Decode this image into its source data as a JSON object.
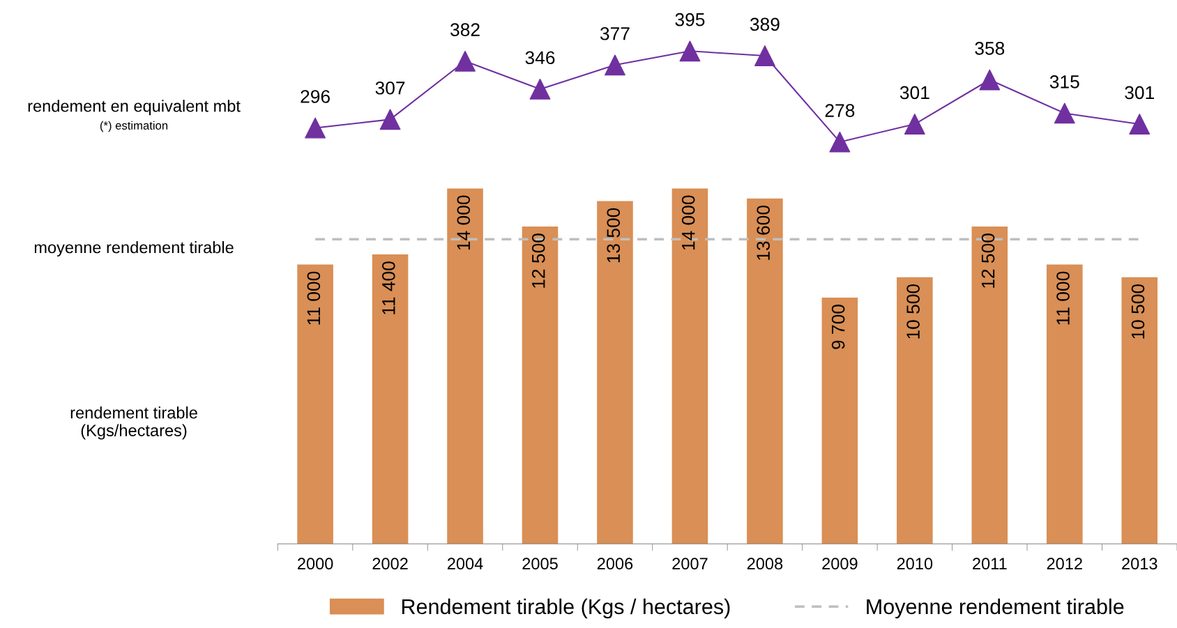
{
  "chart_data": [
    {
      "type": "line",
      "ylabel": "rendement en equivalent mbt",
      "annotations": [
        "(*) estimation"
      ],
      "categories": [
        "2000",
        "2002",
        "2004",
        "2005",
        "2006",
        "2007",
        "2008",
        "2009",
        "2010",
        "2011",
        "2012",
        "2013"
      ],
      "series": [
        {
          "color": "#7030a0",
          "values": [
            296,
            307,
            382,
            346,
            377,
            395,
            389,
            278,
            301,
            358,
            315,
            301
          ]
        }
      ],
      "tick_labels": false,
      "data_labels": true,
      "marker": "triangle",
      "line_style": "solid",
      "grid": false,
      "legend": false
    },
    {
      "type": "bar",
      "ylabel": "rendement tirable\n(Kgs/hectares)",
      "annotations": [
        "moyenne rendement tirable"
      ],
      "categories": [
        "2000",
        "2002",
        "2004",
        "2005",
        "2006",
        "2007",
        "2008",
        "2009",
        "2010",
        "2011",
        "2012",
        "2013"
      ],
      "series": [
        {
          "name": "Rendement tirable (Kgs / hectares)",
          "color": "#d98f55",
          "values": [
            11000,
            11400,
            14000,
            12500,
            13500,
            14000,
            13600,
            9700,
            10500,
            12500,
            11000,
            10500
          ],
          "value_labels": [
            "11 000",
            "11 400",
            "14 000",
            "12 500",
            "13 500",
            "14 000",
            "13 600",
            "9 700",
            "10 500",
            "12 500",
            "11 000",
            "10 500"
          ]
        },
        {
          "name": "Moyenne rendement tirable",
          "type": "line",
          "line_style": "dashed",
          "color": "#bfbfbf",
          "values": [
            12000,
            12000,
            12000,
            12000,
            12000,
            12000,
            12000,
            12000,
            12000,
            12000,
            12000,
            12000
          ]
        }
      ],
      "ylim": [
        0,
        14000
      ],
      "tick_labels": "x",
      "grid": false,
      "legend": "bottom"
    }
  ]
}
